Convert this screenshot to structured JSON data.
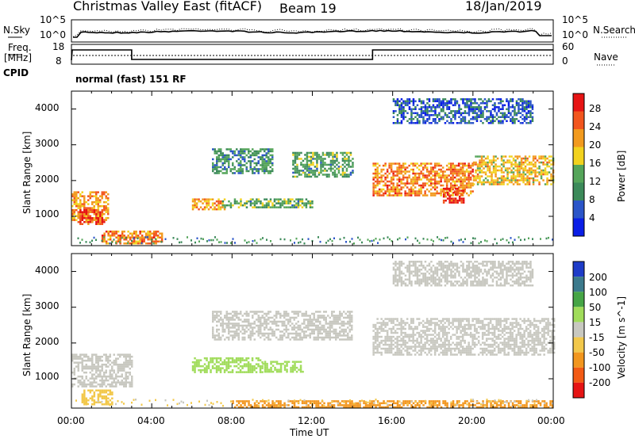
{
  "header": {
    "station": "Christmas Valley East (fitACF)",
    "beam": "Beam 19",
    "date": "18/Jan/2019"
  },
  "noise_panel": {
    "left_label": "N.Sky",
    "right_label": "N.Search",
    "left_ticks": [
      "10^5",
      "10^0"
    ],
    "right_ticks": [
      "10^5",
      "10^0"
    ]
  },
  "freq_panel": {
    "left_label": "Freq.",
    "left_unit": "[MHz]",
    "right_label": "Nave",
    "left_ticks": [
      "18",
      "8"
    ],
    "right_ticks": [
      "60",
      "0"
    ]
  },
  "cpid": {
    "label": "CPID",
    "mode": "normal (fast) 151 RF"
  },
  "time_axis": {
    "title": "Time UT",
    "ticks": [
      "00:00",
      "04:00",
      "08:00",
      "12:00",
      "16:00",
      "20:00",
      "00:00"
    ]
  },
  "colors": {
    "power_scale": [
      "#0a1ee6",
      "#2b55c8",
      "#3c8a5a",
      "#55a55a",
      "#f2d21e",
      "#f29a1e",
      "#f2561e",
      "#e61414"
    ],
    "velocity_scale": [
      "#e61414",
      "#f25a14",
      "#f2961e",
      "#f2c84b",
      "#c8c8c0",
      "#a0dc5a",
      "#46a546",
      "#3c7a8c",
      "#1e3cc8"
    ]
  },
  "chart_data": [
    {
      "type": "heatmap",
      "title": "Power",
      "xlabel": "Time UT",
      "ylabel": "Slant Range [km]",
      "xlim_hours": [
        0,
        24
      ],
      "ylim": [
        180,
        4500
      ],
      "y_ticks": [
        "1000",
        "2000",
        "3000",
        "4000"
      ],
      "colorbar": {
        "label": "Power [dB]",
        "ticks": [
          "4",
          "8",
          "12",
          "16",
          "20",
          "24",
          "28"
        ],
        "range": [
          0,
          30
        ]
      },
      "regions": [
        {
          "t": [
            0.0,
            1.8
          ],
          "r": [
            900,
            1700
          ],
          "level": 20
        },
        {
          "t": [
            0.3,
            1.6
          ],
          "r": [
            800,
            1200
          ],
          "level": 26
        },
        {
          "t": [
            1.5,
            4.5
          ],
          "r": [
            250,
            600
          ],
          "level": 22
        },
        {
          "t": [
            6.0,
            7.6
          ],
          "r": [
            1200,
            1500
          ],
          "level": 20
        },
        {
          "t": [
            7.5,
            12.0
          ],
          "r": [
            1250,
            1500
          ],
          "level": 12
        },
        {
          "t": [
            7.0,
            10.0
          ],
          "r": [
            2200,
            2900
          ],
          "level": 10
        },
        {
          "t": [
            11.0,
            14.0
          ],
          "r": [
            2100,
            2800
          ],
          "level": 12
        },
        {
          "t": [
            15.0,
            20.0
          ],
          "r": [
            1600,
            2500
          ],
          "level": 22
        },
        {
          "t": [
            18.5,
            19.5
          ],
          "r": [
            1400,
            1800
          ],
          "level": 27
        },
        {
          "t": [
            20.0,
            24.0
          ],
          "r": [
            1900,
            2700
          ],
          "level": 18
        },
        {
          "t": [
            16.0,
            23.0
          ],
          "r": [
            3600,
            4300
          ],
          "level": 6
        }
      ]
    },
    {
      "type": "heatmap",
      "title": "Velocity",
      "xlabel": "Time UT",
      "ylabel": "Slant Range [km]",
      "xlim_hours": [
        0,
        24
      ],
      "ylim": [
        180,
        4500
      ],
      "y_ticks": [
        "1000",
        "2000",
        "3000",
        "4000"
      ],
      "colorbar": {
        "label": "Velocity [m s^-1]",
        "ticks": [
          "200",
          "100",
          "50",
          "15",
          "-15",
          "-50",
          "-100",
          "-200"
        ],
        "range": [
          -250,
          250
        ]
      },
      "regions": [
        {
          "t": [
            0.0,
            3.0
          ],
          "r": [
            800,
            1700
          ],
          "level": 0
        },
        {
          "t": [
            0.5,
            2.0
          ],
          "r": [
            300,
            700
          ],
          "level": -40
        },
        {
          "t": [
            6.0,
            9.5
          ],
          "r": [
            1200,
            1600
          ],
          "level": 30
        },
        {
          "t": [
            9.5,
            11.5
          ],
          "r": [
            1200,
            1500
          ],
          "level": 25
        },
        {
          "t": [
            8.0,
            24.0
          ],
          "r": [
            200,
            400
          ],
          "level": -60
        },
        {
          "t": [
            7.0,
            14.0
          ],
          "r": [
            2100,
            2900
          ],
          "level": 0
        },
        {
          "t": [
            15.0,
            24.0
          ],
          "r": [
            1700,
            2700
          ],
          "level": 0
        },
        {
          "t": [
            16.0,
            23.0
          ],
          "r": [
            3600,
            4300
          ],
          "level": 0
        }
      ]
    }
  ]
}
